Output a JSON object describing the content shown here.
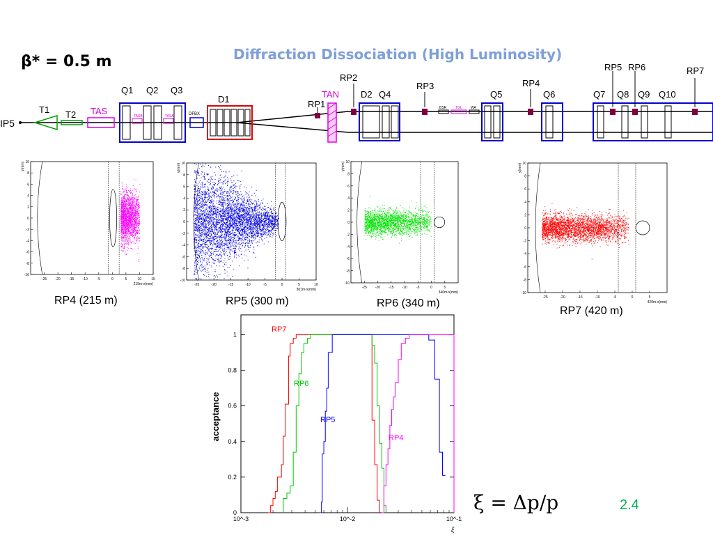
{
  "slide": {
    "beta_label": "β* = 0.5 m",
    "title": "Diffraction Dissociation (High Luminosity)",
    "formula": "ξ = Δp/p",
    "slide_number": "2.4"
  },
  "beamline": {
    "ip_label": "IP5",
    "elements": [
      "T1",
      "T2",
      "TAS",
      "Q1",
      "Q2",
      "Q3",
      "TASB",
      "TASA",
      "DFBX",
      "D1",
      "RP1",
      "TAN",
      "RP2",
      "D2",
      "Q4",
      "RP3",
      "BSR",
      "TGL",
      "WA",
      "Q5",
      "RP4",
      "Q6",
      "Q7",
      "RP5",
      "RP6",
      "Q8",
      "Q9",
      "Q10",
      "RP7"
    ]
  },
  "scatter_plots": [
    {
      "id": "rp4",
      "caption": "RP4 (215 m)",
      "xlabel": "215m-x(mm)",
      "ylabel": "y(mm)",
      "color": "#ff00ff",
      "xlim": [
        -30,
        15
      ],
      "ylim": [
        -10,
        10
      ],
      "xticks": [
        -25,
        -20,
        -15,
        -10,
        -5,
        0,
        5,
        10,
        15
      ],
      "yticks": [
        -10,
        -8,
        -6,
        -4,
        -2,
        0,
        2,
        4,
        6,
        8,
        10
      ],
      "cut_lines": [
        -1.5,
        2.5
      ],
      "aperture": {
        "shape": "ellipse",
        "cx": 0.3,
        "rx": 1.3,
        "ry": 5.1
      },
      "cloud": {
        "cx_min": 3,
        "cx_max": 10,
        "cy_sigma": 2.2,
        "n": 1800
      }
    },
    {
      "id": "rp5",
      "caption": "RP5 (300 m)",
      "xlabel": "301m-x(mm)",
      "ylabel": "y(mm)",
      "color": "#0000e6",
      "xlim": [
        -28,
        10
      ],
      "ylim": [
        -10,
        10
      ],
      "xticks": [
        -25,
        -20,
        -15,
        -10,
        -5,
        0,
        5,
        10
      ],
      "yticks": [
        -10,
        -8,
        -6,
        -4,
        -2,
        0,
        2,
        4,
        6,
        8,
        10
      ],
      "cut_lines": [
        -2,
        1
      ],
      "aperture": {
        "shape": "ellipse",
        "cx": 0,
        "rx": 1.2,
        "ry": 3.3
      },
      "cloud": {
        "cx_min": -26,
        "cx_max": -1,
        "cy_sigma": 4.5,
        "n": 4500
      }
    },
    {
      "id": "rp6",
      "caption": "RP6 (340 m)",
      "xlabel": "340m-x(mm)",
      "ylabel": "y(mm)",
      "color": "#00e600",
      "xlim": [
        -30,
        10
      ],
      "ylim": [
        -10,
        10
      ],
      "xticks": [
        -25,
        -20,
        -15,
        -10,
        -5,
        0,
        5
      ],
      "yticks": [
        -10,
        -8,
        -6,
        -4,
        -2,
        0,
        2,
        4,
        6,
        8,
        10
      ],
      "cut_lines": [
        -4,
        1
      ],
      "aperture": {
        "shape": "circle",
        "cx": 3,
        "r": 2
      },
      "cloud": {
        "cx_min": -25,
        "cx_max": 0,
        "cy_sigma": 1,
        "n": 2200
      }
    },
    {
      "id": "rp7",
      "caption": "RP7 (420 m)",
      "xlabel": "420m-x(mm)",
      "ylabel": "y(mm)",
      "color": "#ff0000",
      "xlim": [
        -30,
        10
      ],
      "ylim": [
        -10,
        10
      ],
      "xticks": [
        -25,
        -20,
        -15,
        -10,
        -5,
        0,
        5
      ],
      "yticks": [
        -10,
        -8,
        -6,
        -4,
        -2,
        0,
        2,
        4,
        6,
        8,
        10
      ],
      "cut_lines": [
        -4,
        1
      ],
      "aperture": {
        "shape": "circle",
        "cx": 3,
        "r": 2
      },
      "cloud": {
        "cx_min": -26,
        "cx_max": -1,
        "cy_sigma": 1,
        "n": 3000
      }
    }
  ],
  "chart_data": {
    "type": "line",
    "ylabel": "acceptance",
    "xlabel": "ξ",
    "xscale": "log",
    "xlim": [
      0.001,
      0.1
    ],
    "ylim": [
      0,
      1
    ],
    "xtick_labels": [
      "10^-3",
      "10^-2",
      "10^-1"
    ],
    "ytick_labels": [
      "0",
      "0.2",
      "0.4",
      "0.6",
      "0.8",
      "1"
    ],
    "series": [
      {
        "name": "RP7",
        "color": "#ff0000",
        "points": [
          [
            0.0018,
            0
          ],
          [
            0.0019,
            0.04
          ],
          [
            0.002,
            0.08
          ],
          [
            0.0021,
            0.12
          ],
          [
            0.0022,
            0.2
          ],
          [
            0.0024,
            0.27
          ],
          [
            0.0025,
            0.43
          ],
          [
            0.0026,
            0.61
          ],
          [
            0.0028,
            0.88
          ],
          [
            0.0029,
            0.95
          ],
          [
            0.0031,
            0.98
          ],
          [
            0.0033,
            1
          ],
          [
            0.017,
            1
          ],
          [
            0.017,
            0.83
          ],
          [
            0.017,
            0.52
          ],
          [
            0.018,
            0.27
          ],
          [
            0.019,
            0.07
          ],
          [
            0.02,
            0
          ]
        ]
      },
      {
        "name": "RP6",
        "color": "#00c800",
        "points": [
          [
            0.0025,
            0
          ],
          [
            0.0025,
            0.08
          ],
          [
            0.0027,
            0.11
          ],
          [
            0.0029,
            0.15
          ],
          [
            0.0031,
            0.34
          ],
          [
            0.0033,
            0.6
          ],
          [
            0.0035,
            0.78
          ],
          [
            0.0037,
            0.9
          ],
          [
            0.0039,
            0.95
          ],
          [
            0.0042,
            0.98
          ],
          [
            0.0045,
            1
          ],
          [
            0.015,
            1
          ],
          [
            0.017,
            0.94
          ],
          [
            0.018,
            0.84
          ],
          [
            0.019,
            0.6
          ],
          [
            0.02,
            0.39
          ],
          [
            0.021,
            0.25
          ],
          [
            0.022,
            0.04
          ],
          [
            0.023,
            0
          ]
        ]
      },
      {
        "name": "RP5",
        "color": "#0000ff",
        "points": [
          [
            0.0055,
            0
          ],
          [
            0.0057,
            0.06
          ],
          [
            0.0058,
            0.33
          ],
          [
            0.006,
            0.4
          ],
          [
            0.0062,
            0.57
          ],
          [
            0.0064,
            0.7
          ],
          [
            0.0066,
            0.9
          ],
          [
            0.0072,
            1
          ],
          [
            0.058,
            1
          ],
          [
            0.058,
            0.97
          ],
          [
            0.066,
            0.75
          ],
          [
            0.073,
            0.34
          ],
          [
            0.078,
            0.21
          ],
          [
            0.083,
            0.21
          ]
        ]
      },
      {
        "name": "RP4",
        "color": "#ff00ff",
        "points": [
          [
            0.021,
            0
          ],
          [
            0.022,
            0.15
          ],
          [
            0.023,
            0.27
          ],
          [
            0.024,
            0.36
          ],
          [
            0.025,
            0.49
          ],
          [
            0.026,
            0.58
          ],
          [
            0.027,
            0.65
          ],
          [
            0.028,
            0.73
          ],
          [
            0.03,
            0.86
          ],
          [
            0.032,
            0.95
          ],
          [
            0.035,
            0.98
          ],
          [
            0.038,
            1
          ],
          [
            0.1,
            1
          ],
          [
            0.1,
            0
          ]
        ]
      }
    ]
  }
}
